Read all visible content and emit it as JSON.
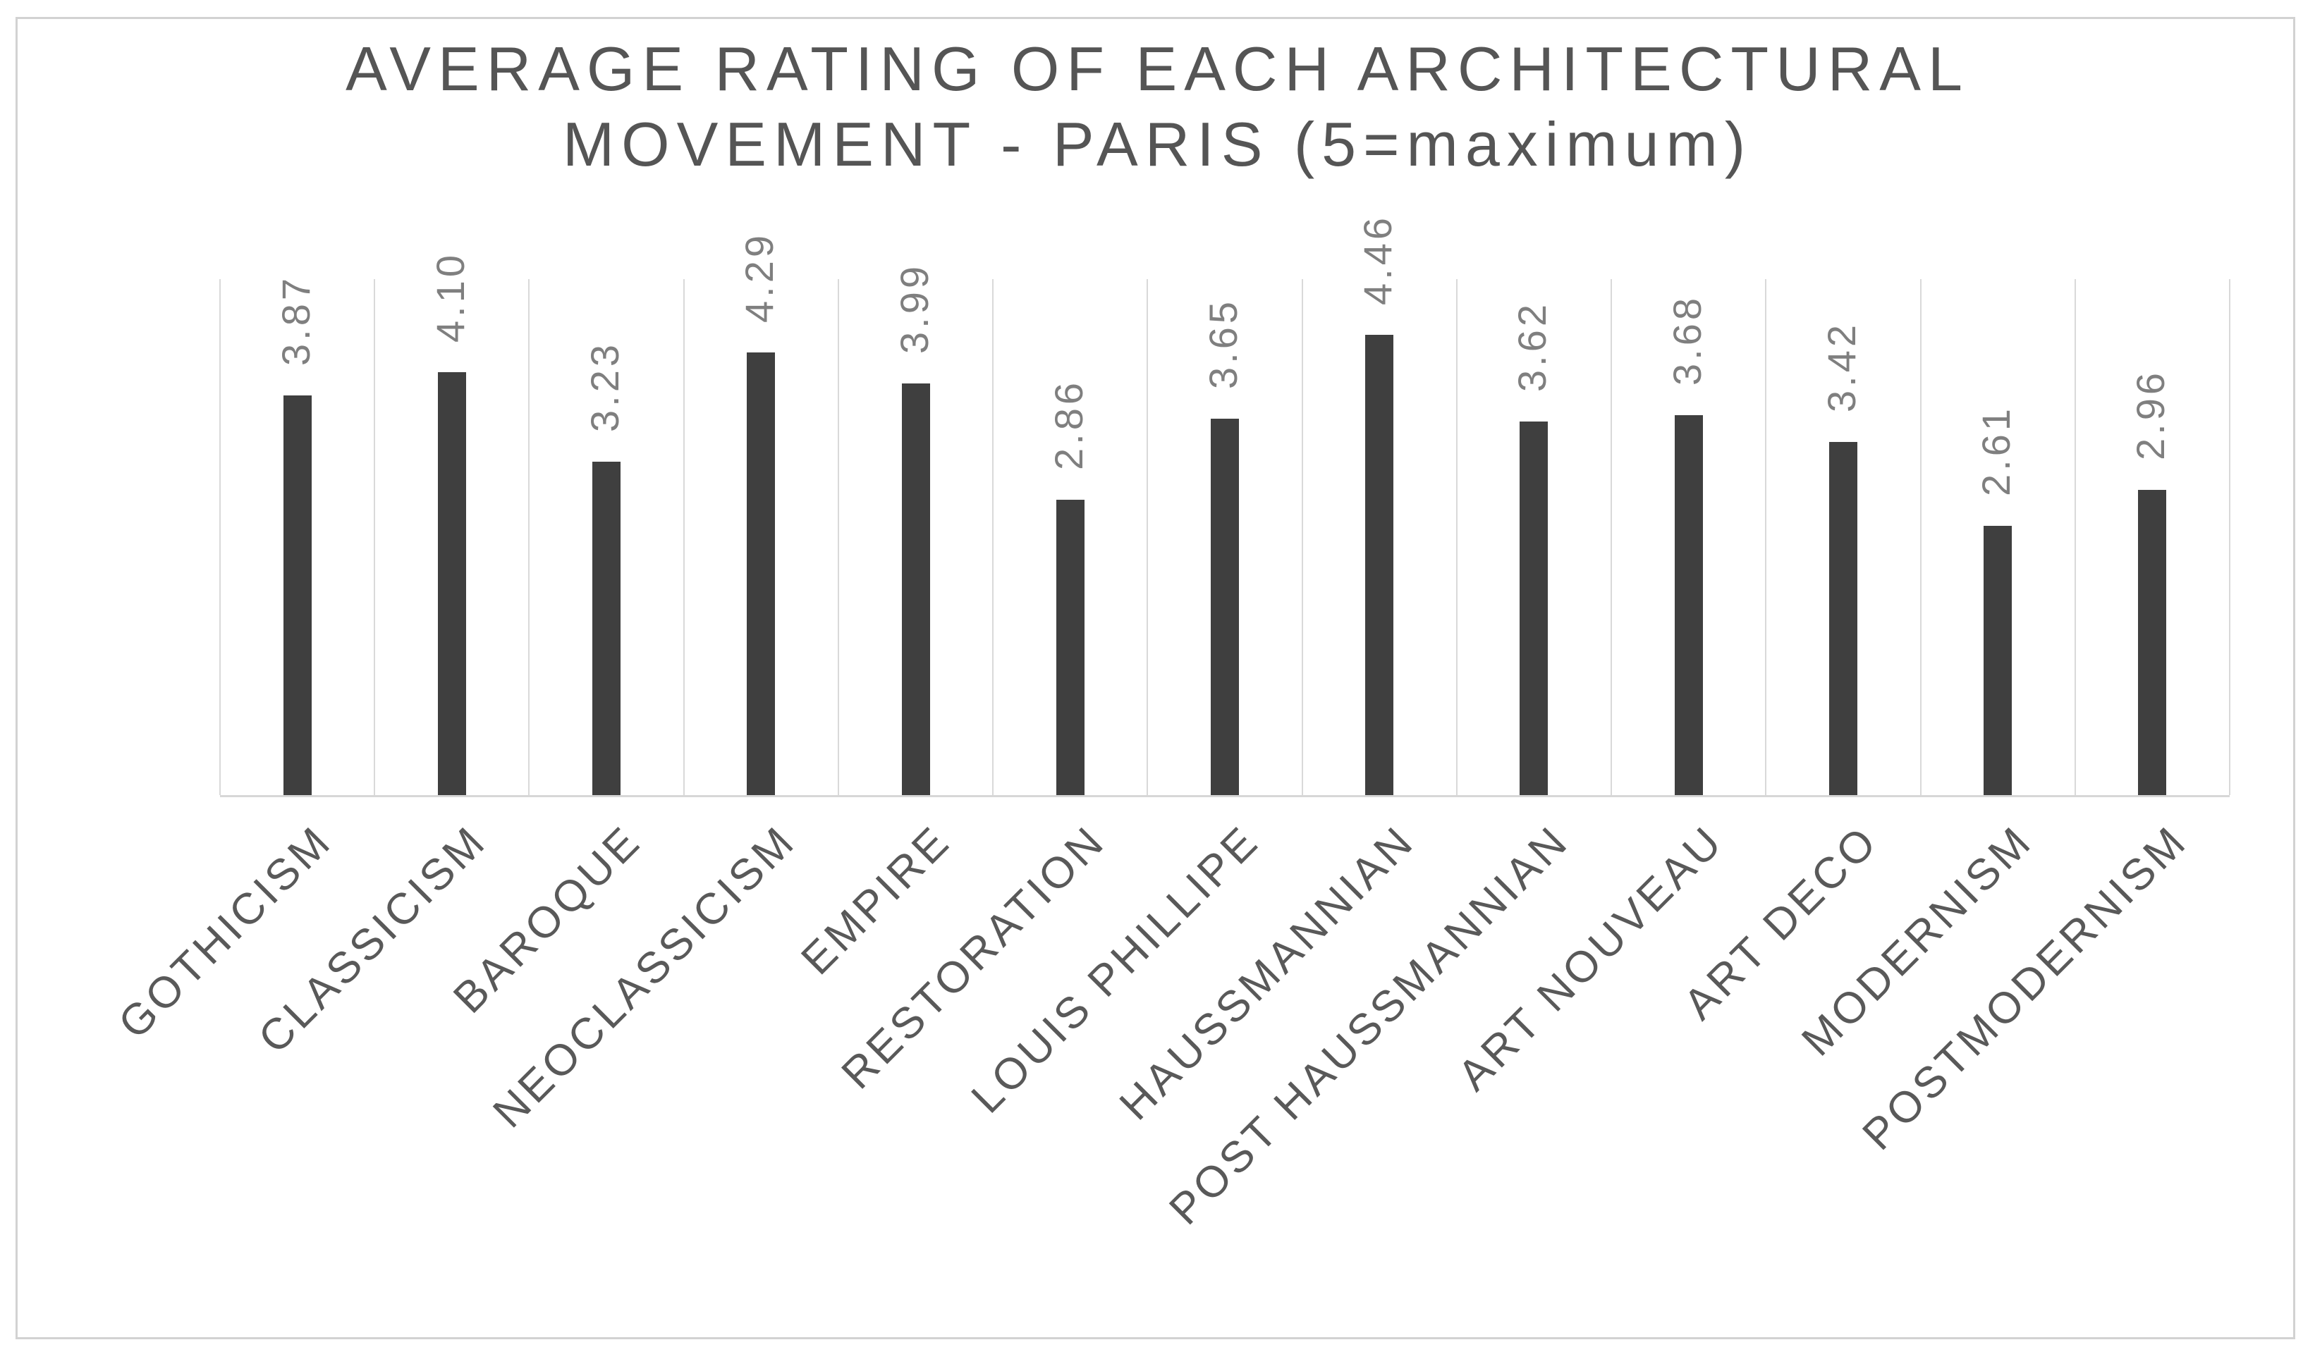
{
  "title": {
    "line1": "AVERAGE RATING OF EACH ARCHITECTURAL",
    "line2": "MOVEMENT - PARIS (5=maximum)"
  },
  "chart_data": {
    "type": "bar",
    "title": "AVERAGE RATING OF EACH ARCHITECTURAL MOVEMENT - PARIS (5=maximum)",
    "title_lines": [
      "AVERAGE RATING OF EACH ARCHITECTURAL",
      "MOVEMENT - PARIS (5=maximum)"
    ],
    "categories": [
      "GOTHICISM",
      "CLASSICISM",
      "BAROQUE",
      "NEOCLASSICISM",
      "EMPIRE",
      "RESTORATION",
      "LOUIS PHILLIPE",
      "HAUSSMANNIAN",
      "POST HAUSSMANNIAN",
      "ART NOUVEAU",
      "ART DECO",
      "MODERNISM",
      "POSTMODERNISM"
    ],
    "values": [
      3.87,
      4.1,
      3.23,
      4.29,
      3.99,
      2.86,
      3.65,
      4.46,
      3.62,
      3.68,
      3.42,
      2.61,
      2.96
    ],
    "value_labels": [
      "3.87",
      "4.10",
      "3.23",
      "4.29",
      "3.99",
      "2.86",
      "3.65",
      "4.46",
      "3.62",
      "3.68",
      "3.42",
      "2.61",
      "2.96"
    ],
    "xlabel": "",
    "ylabel": "",
    "ylim": [
      0,
      5
    ],
    "legend": "none",
    "grid": "vertical-category-separators",
    "value_label_rotation_deg": 90,
    "category_label_rotation_deg": 45,
    "colors": {
      "bar": "#3f3f3f",
      "gridline": "#d9d9d9",
      "axis_line": "#d7d7d7",
      "value_label": "#7f7f7f",
      "category_label": "#595959",
      "title": "#555555",
      "border": "#d2d2d2",
      "background": "#ffffff"
    }
  }
}
